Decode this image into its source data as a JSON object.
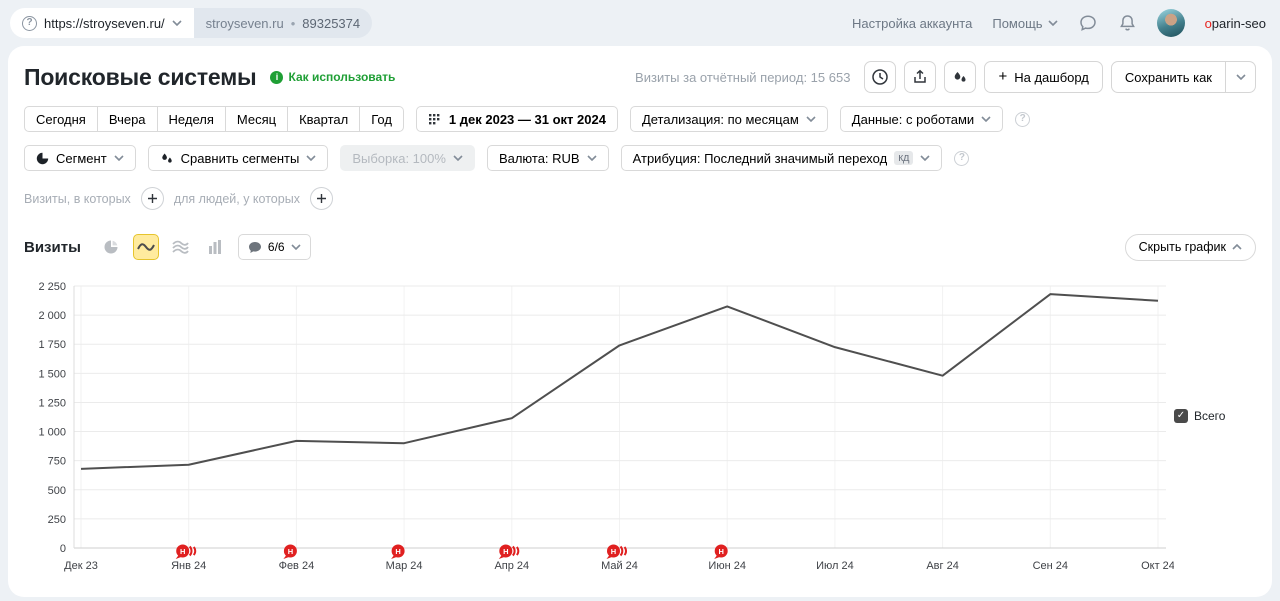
{
  "icons": {
    "question_mark": "?",
    "bullet": "•",
    "plus": "+",
    "check": "✓"
  },
  "topbar": {
    "url": "https://stroyseven.ru/",
    "counter_name": "stroyseven.ru",
    "counter_id": "89325374",
    "account_settings": "Настройка аккаунта",
    "help": "Помощь",
    "user_initial": "o",
    "user_rest": "parin-seo"
  },
  "header": {
    "title": "Поисковые системы",
    "how_to_use": "Как использовать",
    "visits_summary": "Визиты за отчётный период: 15 653",
    "to_dashboard": "На дашборд",
    "save_as": "Сохранить как"
  },
  "filters": {
    "periods": [
      "Сегодня",
      "Вчера",
      "Неделя",
      "Месяц",
      "Квартал",
      "Год"
    ],
    "date_range": "1 дек 2023 — 31 окт 2024",
    "detail": "Детализация: по месяцам",
    "data_mode": "Данные: с роботами",
    "segment": "Сегмент",
    "compare_segments": "Сравнить сегменты",
    "sampling": "Выборка: 100%",
    "currency": "Валюта: RUB",
    "attribution": "Атрибуция: Последний значимый переход",
    "attribution_badge": "кд",
    "visits_in_which": "Визиты, в которых",
    "for_people": "для людей, у которых"
  },
  "chart_controls": {
    "metric_label": "Визиты",
    "goals_count": "6/6",
    "hide_chart": "Скрыть график"
  },
  "legend": {
    "label": "Всего",
    "checked": true
  },
  "chart_data": {
    "type": "line",
    "title": "Визиты",
    "categories": [
      "Дек 23",
      "Янв 24",
      "Фев 24",
      "Мар 24",
      "Апр 24",
      "Май 24",
      "Июн 24",
      "Июл 24",
      "Авг 24",
      "Сен 24",
      "Окт 24"
    ],
    "series": [
      {
        "name": "Всего",
        "color": "#4f4f4f",
        "values": [
          680,
          715,
          920,
          900,
          1115,
          1740,
          2075,
          1725,
          1480,
          2180,
          2123
        ]
      }
    ],
    "total_visits": 15653,
    "ylim": [
      0,
      2250
    ],
    "ytick_step": 250,
    "grid": true,
    "legend_position": "right",
    "note_markers": [
      {
        "month": "Янв 24",
        "stacked": true
      },
      {
        "month": "Фев 24",
        "stacked": false
      },
      {
        "month": "Мар 24",
        "stacked": false
      },
      {
        "month": "Апр 24",
        "stacked": true
      },
      {
        "month": "Май 24",
        "stacked": true
      },
      {
        "month": "Июн 24",
        "stacked": false
      }
    ]
  },
  "colors": {
    "accent_green": "#1f9f35",
    "selected_yellow": "#ffeb9e",
    "marker_red": "#e02020",
    "line": "#4f4f4f",
    "page_bg": "#edf1f5"
  }
}
